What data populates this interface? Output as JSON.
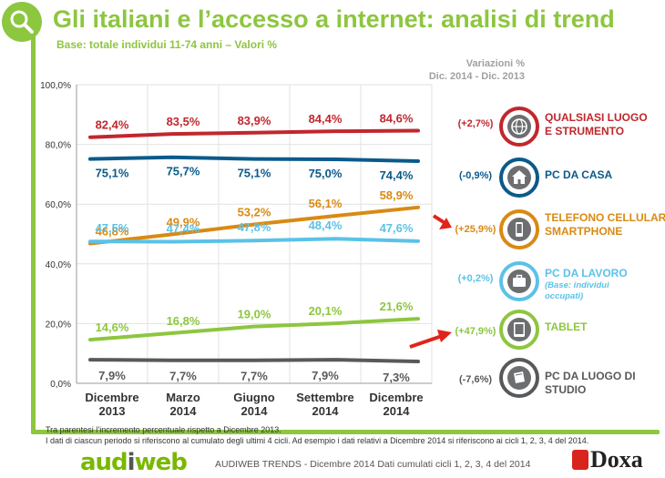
{
  "header": {
    "title": "Gli italiani e l’accesso a internet: analisi di trend",
    "subtitle": "Base: totale individui 11-74 anni – Valori %",
    "variation_header_line1": "Variazioni %",
    "variation_header_line2": "Dic. 2014 - Dic. 2013"
  },
  "chart_data": {
    "type": "line",
    "categories": [
      "Dicembre 2013",
      "Marzo 2014",
      "Giugno 2014",
      "Settembre 2014",
      "Dicembre 2014"
    ],
    "category_lines": [
      [
        "Dicembre",
        "2013"
      ],
      [
        "Marzo",
        "2014"
      ],
      [
        "Giugno",
        "2014"
      ],
      [
        "Settembre",
        "2014"
      ],
      [
        "Dicembre",
        "2014"
      ]
    ],
    "ylim": [
      0,
      100
    ],
    "yticks": [
      0,
      20,
      40,
      60,
      80,
      100
    ],
    "ytick_labels": [
      "0,0%",
      "20,0%",
      "40,0%",
      "60,0%",
      "80,0%",
      "100,0%"
    ],
    "grid": true,
    "series": [
      {
        "name": "QUALSIASI LUOGO E STRUMENTO",
        "color": "#c1272d",
        "values": [
          82.4,
          83.5,
          83.9,
          84.4,
          84.6
        ],
        "labels": [
          "82,4%",
          "83,5%",
          "83,9%",
          "84,4%",
          "84,6%"
        ],
        "variation": "(+2,7%)"
      },
      {
        "name": "PC DA CASA",
        "color": "#0b5a8a",
        "values": [
          75.1,
          75.7,
          75.1,
          75.0,
          74.4
        ],
        "labels": [
          "75,1%",
          "75,7%",
          "75,1%",
          "75,0%",
          "74,4%"
        ],
        "variation": "(-0,9%)"
      },
      {
        "name": "TELEFONO CELLULARE/ SMARTPHONE",
        "color": "#d98a14",
        "values": [
          46.8,
          49.9,
          53.2,
          56.1,
          58.9
        ],
        "labels": [
          "46,8%",
          "49,9%",
          "53,2%",
          "56,1%",
          "58,9%"
        ],
        "variation": "(+25,9%)"
      },
      {
        "name": "PC DA LAVORO",
        "color": "#5bc2e7",
        "values": [
          47.5,
          47.4,
          47.8,
          48.4,
          47.6
        ],
        "labels": [
          "47,5%",
          "47,4%",
          "47,8%",
          "48,4%",
          "47,6%"
        ],
        "variation": "(+0,2%)"
      },
      {
        "name": "TABLET",
        "color": "#8dc63f",
        "values": [
          14.6,
          16.8,
          19.0,
          20.1,
          21.6
        ],
        "labels": [
          "14,6%",
          "16,8%",
          "19,0%",
          "20,1%",
          "21,6%"
        ],
        "variation": "(+47,9%)"
      },
      {
        "name": "PC DA LUOGO DI STUDIO",
        "color": "#58595b",
        "values": [
          7.9,
          7.7,
          7.7,
          7.9,
          7.3
        ],
        "labels": [
          "7,9%",
          "7,7%",
          "7,7%",
          "7,9%",
          "7,3%"
        ],
        "variation": "(-7,6%)"
      }
    ]
  },
  "legend": {
    "any_line1": "QUALSIASI LUOGO",
    "any_line2": "E STRUMENTO",
    "home": "PC DA CASA",
    "phone_line1": "TELEFONO CELLULARE/",
    "phone_line2": "SMARTPHONE",
    "work": "PC DA LAVORO",
    "work_sub1": "(Base: individui",
    "work_sub2": "occupati)",
    "tablet": "TABLET",
    "study_line1": "PC DA LUOGO DI",
    "study_line2": "STUDIO"
  },
  "icons": {
    "search": "search-icon",
    "globe": "globe-icon",
    "home": "house-icon",
    "phone": "smartphone-icon",
    "work": "briefcase-icon",
    "tablet": "tablet-icon",
    "study": "book-icon",
    "arrow": "red-arrow-icon"
  },
  "notes": {
    "line1": "Tra parentesi l’incremento percentuale rispetto a Dicembre 2013.",
    "line2": "I dati di ciascun periodo si riferiscono al cumulato degli ultimi 4 cicli. Ad esempio i dati relativi a Dicembre 2014  si riferiscono ai cicli 1, 2, 3, 4 del 2014."
  },
  "footer": {
    "center": "AUDIWEB TRENDS - Dicembre 2014  Dati cumulati cicli 1, 2, 3, 4 del 2014",
    "logo_left_a": "aud",
    "logo_left_i": "i",
    "logo_left_b": "web",
    "logo_right": "Doxa"
  }
}
